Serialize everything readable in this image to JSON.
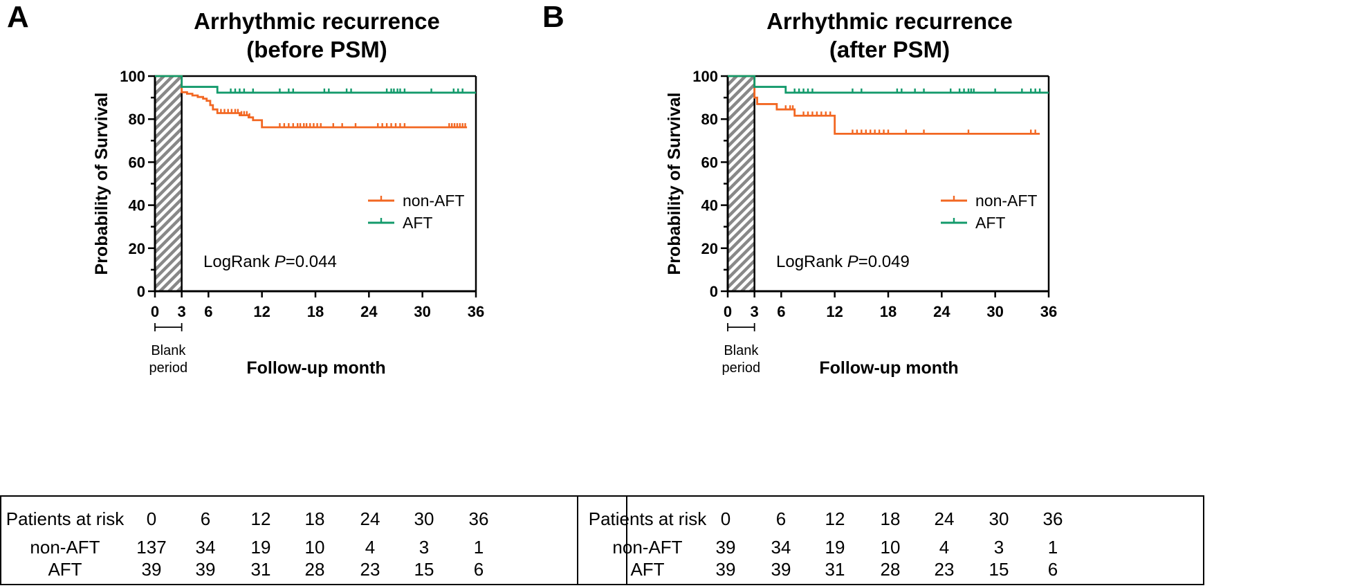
{
  "panels": [
    {
      "letter": "A",
      "title_line1": "Arrhythmic recurrence",
      "title_line2": "(before PSM)",
      "logrank_prefix": "LogRank ",
      "logrank_p_symbol": "P",
      "logrank_value": "=0.044",
      "risk_table": {
        "header_label": "Patients at risk",
        "timepoints": [
          "0",
          "6",
          "12",
          "18",
          "24",
          "30",
          "36"
        ],
        "rows": [
          {
            "label": "non-AFT",
            "values": [
              "137",
              "34",
              "19",
              "10",
              "4",
              "3",
              "1"
            ]
          },
          {
            "label": "AFT",
            "values": [
              "39",
              "39",
              "31",
              "28",
              "23",
              "15",
              "6"
            ]
          }
        ]
      }
    },
    {
      "letter": "B",
      "title_line1": "Arrhythmic recurrence",
      "title_line2": "(after PSM)",
      "logrank_prefix": "LogRank ",
      "logrank_p_symbol": "P",
      "logrank_value": "=0.049",
      "risk_table": {
        "header_label": "Patients at risk",
        "timepoints": [
          "0",
          "6",
          "12",
          "18",
          "24",
          "30",
          "36"
        ],
        "rows": [
          {
            "label": "non-AFT",
            "values": [
              "39",
              "34",
              "19",
              "10",
              "4",
              "3",
              "1"
            ]
          },
          {
            "label": "AFT",
            "values": [
              "39",
              "39",
              "31",
              "28",
              "23",
              "15",
              "6"
            ]
          }
        ]
      }
    }
  ],
  "colors": {
    "non_aft": "#F26722",
    "aft": "#139A6B",
    "axis": "#000000",
    "hatch": "#888888"
  },
  "chart_data": [
    {
      "type": "line",
      "subtype": "kaplan-meier",
      "title": "Arrhythmic recurrence (before PSM)",
      "xlabel": "Follow-up month",
      "ylabel": "Probability of Survival",
      "xlim": [
        0,
        36
      ],
      "ylim": [
        0,
        100
      ],
      "xticks": [
        "0",
        "3",
        "6",
        "12",
        "18",
        "24",
        "30",
        "36"
      ],
      "yticks": [
        "0",
        "20",
        "40",
        "60",
        "80",
        "100"
      ],
      "blank_period": {
        "start": 0,
        "end": 3,
        "label_line1": "Blank",
        "label_line2": "period"
      },
      "legend": [
        "non-AFT",
        "AFT"
      ],
      "legend_position": "center-right",
      "series": [
        {
          "name": "non-AFT",
          "steps": [
            [
              0,
              100
            ],
            [
              3,
              92.5
            ],
            [
              3.6,
              91.8
            ],
            [
              4.2,
              91
            ],
            [
              4.8,
              90.3
            ],
            [
              5.4,
              89.5
            ],
            [
              5.8,
              88.5
            ],
            [
              6.2,
              86.5
            ],
            [
              6.5,
              84.5
            ],
            [
              7,
              82.8
            ],
            [
              9.5,
              81.8
            ],
            [
              10.5,
              80.8
            ],
            [
              11,
              79.5
            ],
            [
              12,
              76.2
            ],
            [
              35,
              76.2
            ]
          ],
          "censor_x": [
            7.4,
            7.8,
            8.2,
            8.6,
            9,
            9.3,
            9.7,
            10,
            10.3,
            10.6,
            14,
            14.5,
            15,
            15.5,
            16,
            16.3,
            16.7,
            17,
            17.4,
            17.8,
            18.2,
            18.6,
            20,
            21,
            22.5,
            25,
            25.5,
            26,
            26.5,
            27,
            27.5,
            28,
            33,
            33.3,
            33.6,
            33.9,
            34.2,
            34.5,
            34.8
          ]
        },
        {
          "name": "AFT",
          "steps": [
            [
              0,
              100
            ],
            [
              3,
              95
            ],
            [
              7,
              92.3
            ],
            [
              36,
              92.3
            ]
          ],
          "censor_x": [
            8.5,
            9,
            9.5,
            10,
            11,
            14,
            15,
            15.5,
            19,
            19.5,
            21.5,
            22,
            26,
            26.5,
            26.8,
            27.2,
            27.5,
            28,
            31,
            33.5,
            34,
            34.5
          ]
        }
      ]
    },
    {
      "type": "line",
      "subtype": "kaplan-meier",
      "title": "Arrhythmic recurrence (after PSM)",
      "xlabel": "Follow-up month",
      "ylabel": "Probability of Survival",
      "xlim": [
        0,
        36
      ],
      "ylim": [
        0,
        100
      ],
      "xticks": [
        "0",
        "3",
        "6",
        "12",
        "18",
        "24",
        "30",
        "36"
      ],
      "yticks": [
        "0",
        "20",
        "40",
        "60",
        "80",
        "100"
      ],
      "blank_period": {
        "start": 0,
        "end": 3,
        "label_line1": "Blank",
        "label_line2": "period"
      },
      "legend": [
        "non-AFT",
        "AFT"
      ],
      "legend_position": "center-right",
      "series": [
        {
          "name": "non-AFT",
          "steps": [
            [
              0,
              100
            ],
            [
              3,
              90
            ],
            [
              3.3,
              87
            ],
            [
              5.5,
              84.5
            ],
            [
              7.5,
              81.6
            ],
            [
              12,
              73.2
            ],
            [
              35,
              73.2
            ]
          ],
          "censor_x": [
            6.5,
            7,
            7.3,
            8.5,
            9,
            9.5,
            10,
            10.5,
            11,
            11.5,
            14,
            14.5,
            15,
            15.5,
            16,
            16.5,
            17,
            17.5,
            18,
            20,
            22,
            27,
            34,
            34.5
          ]
        },
        {
          "name": "AFT",
          "steps": [
            [
              0,
              100
            ],
            [
              3,
              95
            ],
            [
              6.5,
              92.3
            ],
            [
              36,
              92.3
            ]
          ],
          "censor_x": [
            7.5,
            8,
            8.5,
            9,
            9.5,
            14,
            15,
            19,
            19.5,
            21,
            22,
            25,
            26,
            26.5,
            27,
            27.3,
            27.6,
            30,
            33,
            34,
            34.5,
            35
          ]
        }
      ]
    }
  ]
}
